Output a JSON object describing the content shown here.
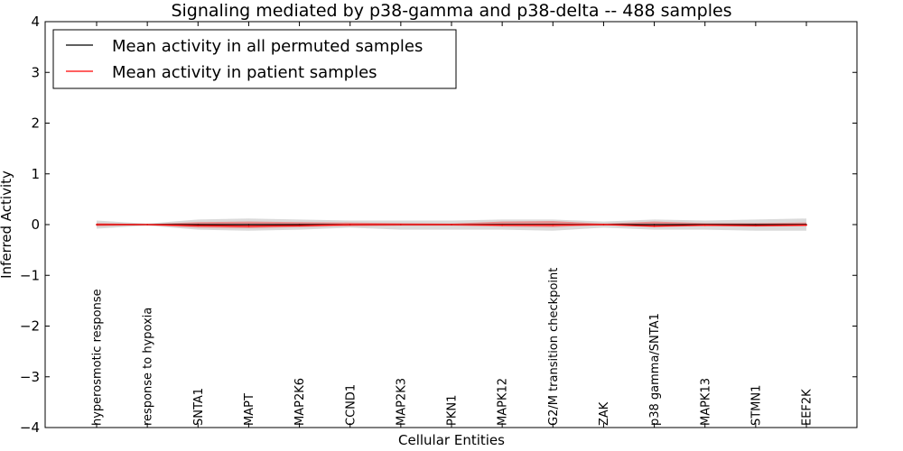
{
  "chart_data": {
    "type": "line",
    "title": "Signaling mediated by p38-gamma and p38-delta -- 488 samples",
    "xlabel": "Cellular Entities",
    "ylabel": "Inferred Activity",
    "ylim": [
      -4,
      4
    ],
    "yticks": [
      "4",
      "3",
      "2",
      "1",
      "0",
      "−1",
      "−2",
      "−3",
      "−4"
    ],
    "ytick_values": [
      4,
      3,
      2,
      1,
      0,
      -1,
      -2,
      -3,
      -4
    ],
    "legend_position": "top-left",
    "categories": [
      "hyperosmotic response",
      "response to hypoxia",
      "SNTA1",
      "MAPT",
      "MAP2K6",
      "CCND1",
      "MAP2K3",
      "PKN1",
      "MAPK12",
      "G2/M transition checkpoint",
      "ZAK",
      "p38 gamma/SNTA1",
      "MAPK13",
      "STMN1",
      "EEF2K"
    ],
    "series": [
      {
        "name": "Mean activity in all permuted samples",
        "color": "#000000",
        "values": [
          0,
          0,
          0,
          0,
          0,
          0,
          0,
          0,
          0,
          0,
          0,
          0,
          0,
          0,
          0
        ],
        "band_lower": [
          -0.08,
          -0.02,
          -0.1,
          -0.12,
          -0.1,
          -0.06,
          -0.1,
          -0.1,
          -0.1,
          -0.12,
          -0.06,
          -0.1,
          -0.1,
          -0.12,
          -0.12
        ],
        "band_upper": [
          0.08,
          0.02,
          0.1,
          0.12,
          0.1,
          0.08,
          0.08,
          0.08,
          0.1,
          0.1,
          0.06,
          0.1,
          0.08,
          0.1,
          0.12
        ],
        "band_color": "#bbbbbb"
      },
      {
        "name": "Mean activity in patient samples",
        "color": "#ff0000",
        "values": [
          0,
          0,
          -0.02,
          -0.03,
          -0.02,
          0,
          0,
          0,
          -0.01,
          -0.01,
          0,
          -0.03,
          -0.01,
          -0.02,
          -0.01
        ],
        "band_lower": [
          -0.03,
          -0.01,
          -0.06,
          -0.07,
          -0.05,
          -0.03,
          -0.02,
          -0.02,
          -0.04,
          -0.05,
          -0.01,
          -0.05,
          -0.03,
          -0.04,
          -0.03
        ],
        "band_upper": [
          0.03,
          0.01,
          0.05,
          0.06,
          0.05,
          0.04,
          0.03,
          0.02,
          0.06,
          0.07,
          0.02,
          0.06,
          0.03,
          0.03,
          0.04
        ],
        "band_color": "#ff0000"
      }
    ]
  }
}
